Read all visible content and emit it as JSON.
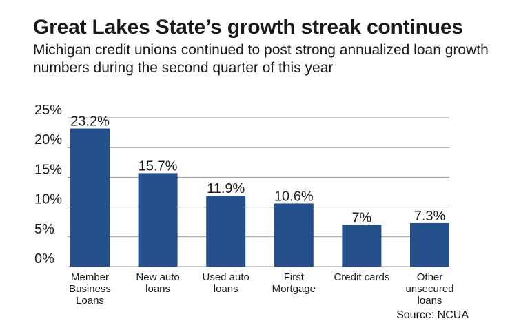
{
  "header": {
    "title": "Great Lakes State’s growth streak continues",
    "subtitle": "Michigan credit unions continued to post strong annualized loan growth numbers during the second quarter of this year"
  },
  "footer": {
    "source": "Source: NCUA"
  },
  "colors": {
    "bar": "#24508c",
    "grid": "#999999",
    "text": "#1a1a1a"
  },
  "chart_data": {
    "type": "bar",
    "title": "Great Lakes State’s growth streak continues",
    "subtitle": "Michigan credit unions continued to post strong annualized loan growth numbers during the second quarter of this year",
    "categories": [
      [
        "Member",
        "Business",
        "Loans"
      ],
      [
        "New auto",
        "loans"
      ],
      [
        "Used auto",
        "loans"
      ],
      [
        "First",
        "Mortgage"
      ],
      [
        "Credit cards"
      ],
      [
        "Other",
        "unsecured",
        "loans"
      ]
    ],
    "values": [
      23.2,
      15.7,
      11.9,
      10.6,
      7,
      7.3
    ],
    "value_labels": [
      "23.2%",
      "15.7%",
      "11.9%",
      "10.6%",
      "7%",
      "7.3%"
    ],
    "y_ticks": [
      0,
      5,
      10,
      15,
      20,
      25
    ],
    "y_tick_labels": [
      "0%",
      "5%",
      "10%",
      "15%",
      "20%",
      "25%"
    ],
    "ylim": [
      0,
      25
    ],
    "xlabel": "",
    "ylabel": "",
    "grid": true,
    "legend": "none"
  }
}
